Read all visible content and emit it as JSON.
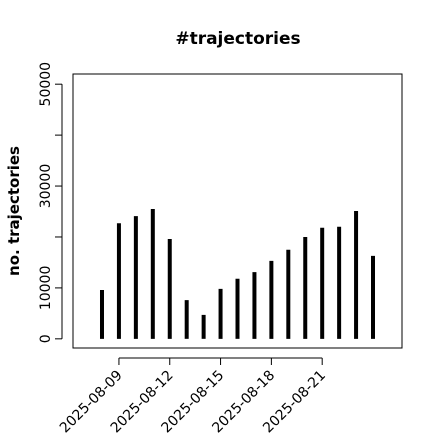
{
  "chart_data": {
    "type": "bar",
    "title": "#trajectories",
    "y_label": "no. trajectories",
    "x": [
      "2025-08-08",
      "2025-08-09",
      "2025-08-10",
      "2025-08-11",
      "2025-08-12",
      "2025-08-13",
      "2025-08-14",
      "2025-08-15",
      "2025-08-16",
      "2025-08-17",
      "2025-08-18",
      "2025-08-19",
      "2025-08-20",
      "2025-08-21",
      "2025-08-22",
      "2025-08-23",
      "2025-08-24"
    ],
    "values": [
      9600,
      22700,
      24100,
      25500,
      19600,
      7600,
      4700,
      9800,
      11800,
      13100,
      15300,
      17500,
      20000,
      21800,
      22000,
      25100,
      16300
    ],
    "color": "#000000",
    "xticks": [
      "2025-08-09",
      "2025-08-12",
      "2025-08-15",
      "2025-08-18",
      "2025-08-21"
    ],
    "ylim": [
      -1800,
      52000
    ],
    "yticks": [
      0,
      10000,
      30000,
      50000
    ],
    "ytick_marks": [
      0,
      10000,
      20000,
      30000,
      40000,
      50000
    ]
  }
}
